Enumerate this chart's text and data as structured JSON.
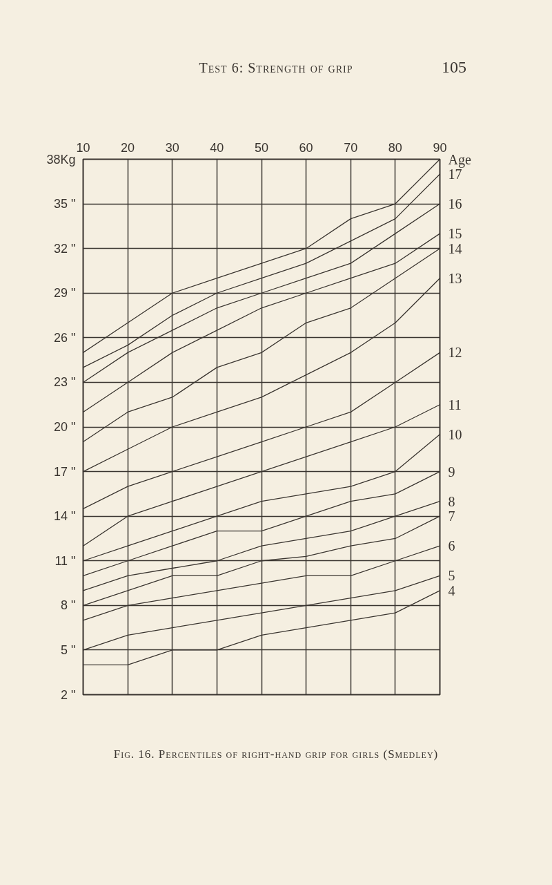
{
  "chart_data": {
    "type": "line",
    "title": "Fig. 16. Percentiles of right-hand grip for girls (Smedley)",
    "annotations": [
      "Test 6: Strength of grip",
      "105"
    ],
    "legend_title": "Age",
    "x": [
      10,
      20,
      30,
      40,
      50,
      60,
      70,
      80,
      90
    ],
    "xlim": [
      10,
      90
    ],
    "xticks": [
      10,
      20,
      30,
      40,
      50,
      60,
      70,
      80,
      90
    ],
    "ylim": [
      2,
      38
    ],
    "yticks": [
      {
        "value": 2,
        "label": "2 \""
      },
      {
        "value": 5,
        "label": "5 \""
      },
      {
        "value": 8,
        "label": "8 \""
      },
      {
        "value": 11,
        "label": "11 \""
      },
      {
        "value": 14,
        "label": "14 \""
      },
      {
        "value": 17,
        "label": "17 \""
      },
      {
        "value": 20,
        "label": "20 \""
      },
      {
        "value": 23,
        "label": "23 \""
      },
      {
        "value": 26,
        "label": "26 \""
      },
      {
        "value": 29,
        "label": "29 \""
      },
      {
        "value": 32,
        "label": "32 \""
      },
      {
        "value": 35,
        "label": "35 \""
      },
      {
        "value": 38,
        "label": "38Kg"
      }
    ],
    "grid": true,
    "series": [
      {
        "color": "#3a3530",
        "values": [
          25,
          27,
          29,
          30,
          31,
          32,
          34,
          35,
          38
        ]
      },
      {
        "name": "17",
        "color": "#3a3530",
        "values": [
          24,
          25.5,
          27.5,
          29,
          30,
          31,
          32.5,
          34,
          37
        ]
      },
      {
        "name": "16",
        "color": "#3a3530",
        "values": [
          23,
          25,
          26.5,
          28,
          29,
          30,
          31,
          33,
          35
        ]
      },
      {
        "name": "15",
        "color": "#3a3530",
        "values": [
          21,
          23,
          25,
          26.5,
          28,
          29,
          30,
          31,
          33
        ]
      },
      {
        "name": "14",
        "color": "#3a3530",
        "values": [
          19,
          21,
          22,
          24,
          25,
          27,
          28,
          30,
          32
        ]
      },
      {
        "name": "13",
        "color": "#3a3530",
        "values": [
          17,
          18.5,
          20,
          21,
          22,
          23.5,
          25,
          27,
          30
        ]
      },
      {
        "name": "12",
        "color": "#3a3530",
        "values": [
          14.5,
          16,
          17,
          18,
          19,
          20,
          21,
          23,
          25
        ]
      },
      {
        "name": "11",
        "color": "#3a3530",
        "values": [
          12,
          14,
          15,
          16,
          17,
          18,
          19,
          20,
          21.5
        ]
      },
      {
        "name": "10",
        "color": "#3a3530",
        "values": [
          11,
          12,
          13,
          14,
          15,
          15.5,
          16,
          17,
          19.5
        ]
      },
      {
        "name": "9",
        "color": "#3a3530",
        "values": [
          10,
          11,
          12,
          13,
          13,
          14,
          15,
          15.5,
          17
        ]
      },
      {
        "name": "8",
        "color": "#3a3530",
        "values": [
          9,
          10,
          10.5,
          11,
          12,
          12.5,
          13,
          14,
          15
        ]
      },
      {
        "name": "7",
        "color": "#3a3530",
        "values": [
          8,
          9,
          10,
          10,
          11,
          11.3,
          12,
          12.5,
          14
        ]
      },
      {
        "name": "6",
        "color": "#3a3530",
        "values": [
          7,
          8,
          8.5,
          9,
          9.5,
          10,
          10,
          11,
          12
        ]
      },
      {
        "name": "5",
        "color": "#3a3530",
        "values": [
          5,
          6,
          6.5,
          7,
          7.5,
          8,
          8.5,
          9,
          10
        ]
      },
      {
        "name": "4",
        "color": "#3a3530",
        "values": [
          4,
          4,
          5,
          5,
          6,
          6.5,
          7,
          7.5,
          9
        ]
      }
    ]
  }
}
